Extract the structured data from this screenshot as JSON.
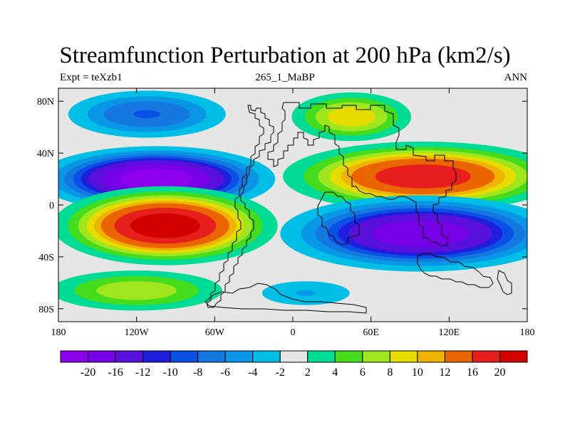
{
  "header": {
    "title": "Streamfunction Perturbation at 200 hPa (km2/s)",
    "left_label": "Expt = teXzb1",
    "center_label": "265_1_MaBP",
    "right_label": "ANN"
  },
  "chart_data": {
    "type": "heatmap",
    "title": "Streamfunction Perturbation at 200 hPa (km2/s)",
    "xlabel": "",
    "ylabel": "",
    "xlim": [
      -180,
      180
    ],
    "ylim": [
      -90,
      90
    ],
    "x_ticks": [
      {
        "value": -180,
        "label": "180"
      },
      {
        "value": -120,
        "label": "120W"
      },
      {
        "value": -60,
        "label": "60W"
      },
      {
        "value": 0,
        "label": "0"
      },
      {
        "value": 60,
        "label": "60E"
      },
      {
        "value": 120,
        "label": "120E"
      },
      {
        "value": 180,
        "label": "180"
      }
    ],
    "y_ticks": [
      {
        "value": 80,
        "label": "80N"
      },
      {
        "value": 40,
        "label": "40N"
      },
      {
        "value": 0,
        "label": "0"
      },
      {
        "value": -40,
        "label": "40S"
      },
      {
        "value": -80,
        "label": "80S"
      }
    ],
    "levels": [
      -20,
      -16,
      -12,
      -10,
      -8,
      -6,
      -4,
      -2,
      2,
      4,
      6,
      8,
      10,
      12,
      16,
      20
    ],
    "level_labels": [
      "-20",
      "-16",
      "-12",
      "-10",
      "-8",
      "-6",
      "-4",
      "-2",
      "2",
      "4",
      "6",
      "8",
      "10",
      "12",
      "16",
      "20"
    ],
    "colors": [
      "#8c00ec",
      "#7800e6",
      "#5a10dc",
      "#1e1edc",
      "#0a50e6",
      "#1478e0",
      "#0a96e6",
      "#00bee6",
      "#e6e6e6",
      "#00dc96",
      "#46dc1e",
      "#a0e61e",
      "#e6dc00",
      "#eeb400",
      "#ea6400",
      "#e61e1e",
      "#d20000"
    ],
    "anomalies": [
      {
        "name": "north-pacific-low",
        "lon": -112,
        "lat": 70,
        "peak": -8,
        "lon_width": 30,
        "lat_width": 9
      },
      {
        "name": "north-atlantic-high",
        "lon": 45,
        "lat": 68,
        "peak": 9,
        "lon_width": 22,
        "lat_width": 9
      },
      {
        "name": "subtropical-pacific-nh-low",
        "lon": -105,
        "lat": 20,
        "peak": -22,
        "lon_width": 36,
        "lat_width": 10
      },
      {
        "name": "subtropical-asia-nh-high",
        "lon": 100,
        "lat": 22,
        "peak": 18,
        "lon_width": 44,
        "lat_width": 11
      },
      {
        "name": "subtropical-pacific-sh-high",
        "lon": -98,
        "lat": -16,
        "peak": 22,
        "lon_width": 34,
        "lat_width": 12
      },
      {
        "name": "subtropical-indian-sh-low",
        "lon": 98,
        "lat": -22,
        "peak": -18,
        "lon_width": 44,
        "lat_width": 12
      },
      {
        "name": "southern-pacific-high",
        "lon": -120,
        "lat": -66,
        "peak": 7,
        "lon_width": 34,
        "lat_width": 8
      },
      {
        "name": "southern-atlantic-low",
        "lon": 10,
        "lat": -68,
        "peak": -4,
        "lon_width": 22,
        "lat_width": 6
      }
    ]
  }
}
